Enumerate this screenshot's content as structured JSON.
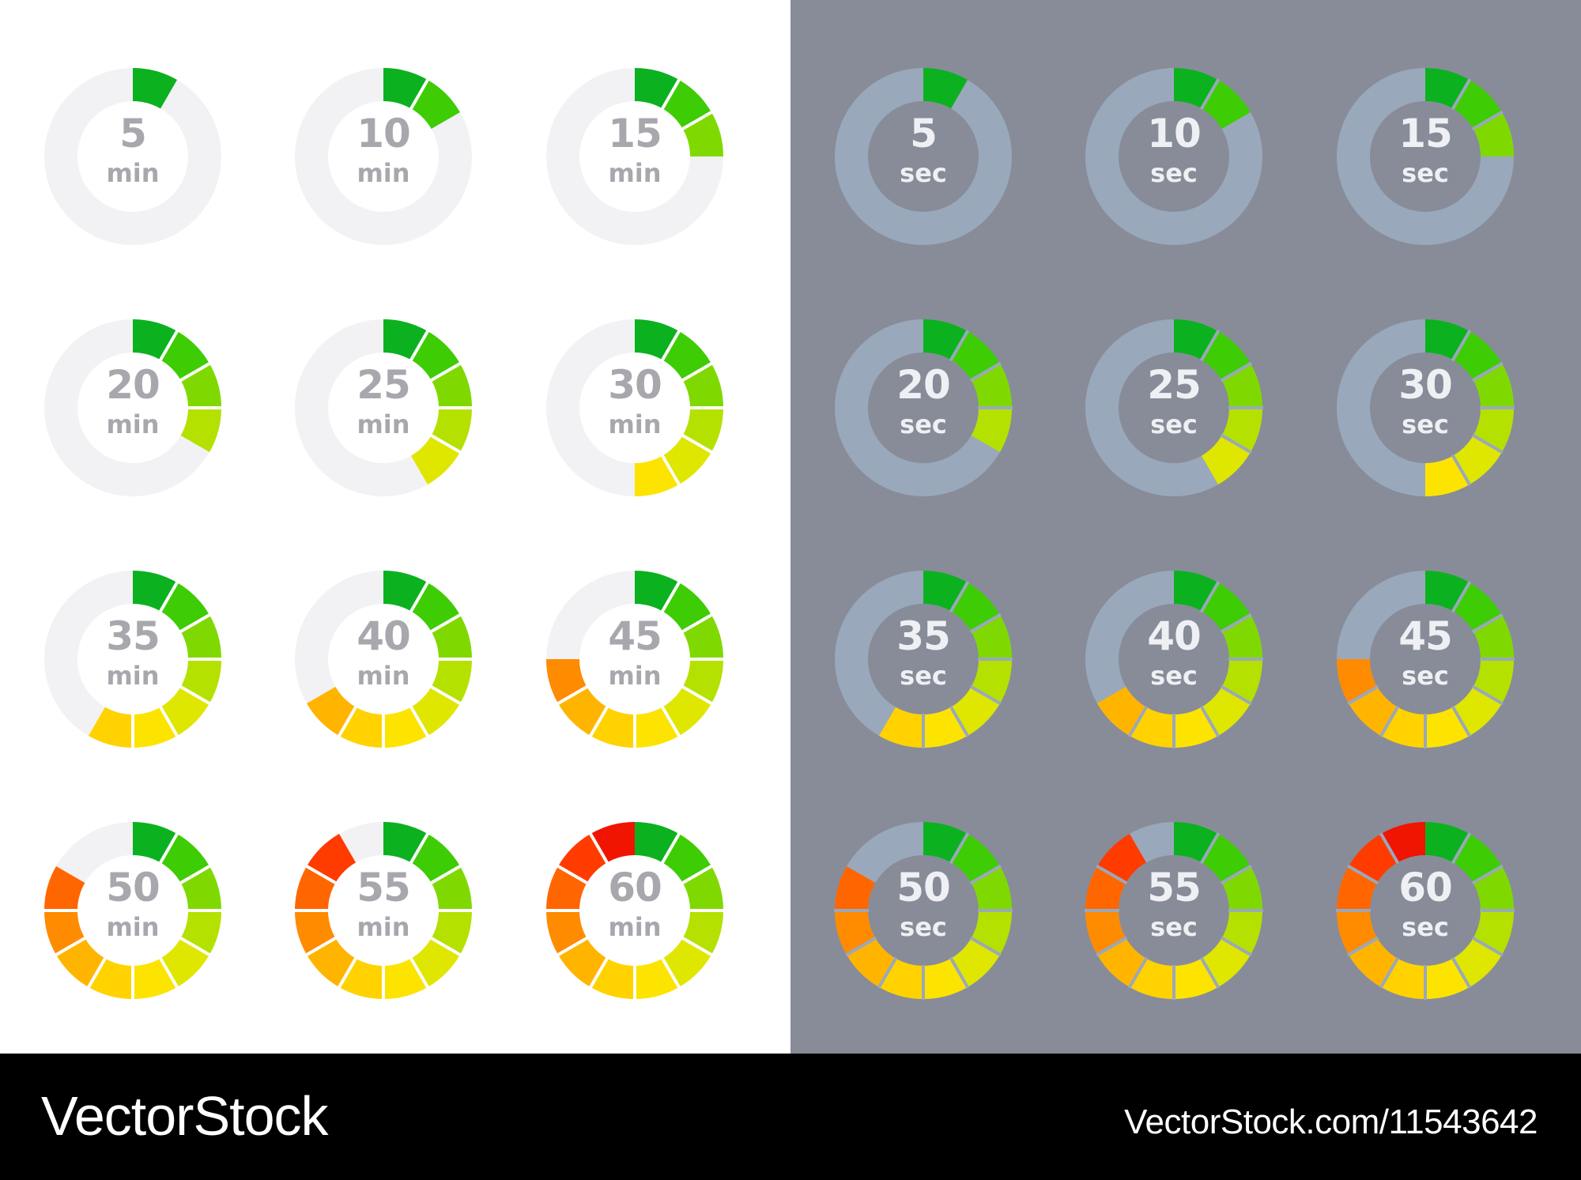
{
  "panels": [
    {
      "id": "light",
      "unit": "min",
      "track_color": "#f2f1f4",
      "gap_color": "#ffffff",
      "timers": [
        {
          "value": "5",
          "segments_filled": 1
        },
        {
          "value": "10",
          "segments_filled": 2
        },
        {
          "value": "15",
          "segments_filled": 3
        },
        {
          "value": "20",
          "segments_filled": 4
        },
        {
          "value": "25",
          "segments_filled": 5
        },
        {
          "value": "30",
          "segments_filled": 6
        },
        {
          "value": "35",
          "segments_filled": 7
        },
        {
          "value": "40",
          "segments_filled": 8
        },
        {
          "value": "45",
          "segments_filled": 9
        },
        {
          "value": "50",
          "segments_filled": 10
        },
        {
          "value": "55",
          "segments_filled": 11
        },
        {
          "value": "60",
          "segments_filled": 12
        }
      ]
    },
    {
      "id": "dark",
      "unit": "sec",
      "track_color": "#9aa8bb",
      "gap_color": "#9aa8bb",
      "timers": [
        {
          "value": "5",
          "segments_filled": 1
        },
        {
          "value": "10",
          "segments_filled": 2
        },
        {
          "value": "15",
          "segments_filled": 3
        },
        {
          "value": "20",
          "segments_filled": 4
        },
        {
          "value": "25",
          "segments_filled": 5
        },
        {
          "value": "30",
          "segments_filled": 6
        },
        {
          "value": "35",
          "segments_filled": 7
        },
        {
          "value": "40",
          "segments_filled": 8
        },
        {
          "value": "45",
          "segments_filled": 9
        },
        {
          "value": "50",
          "segments_filled": 10
        },
        {
          "value": "55",
          "segments_filled": 11
        },
        {
          "value": "60",
          "segments_filled": 12
        }
      ]
    }
  ],
  "segments_total": 12,
  "segment_colors": [
    "#0cb11f",
    "#3ecc05",
    "#7fd900",
    "#b4e100",
    "#dfe600",
    "#fde300",
    "#ffd200",
    "#ffb500",
    "#ff8b00",
    "#ff6600",
    "#ff3b00",
    "#ef1500"
  ],
  "footer": {
    "logo": "VectorStock",
    "url": "VectorStock.com/11543642"
  },
  "colors": {
    "dark_panel_background": "#878c98",
    "footer_background": "#000000"
  }
}
